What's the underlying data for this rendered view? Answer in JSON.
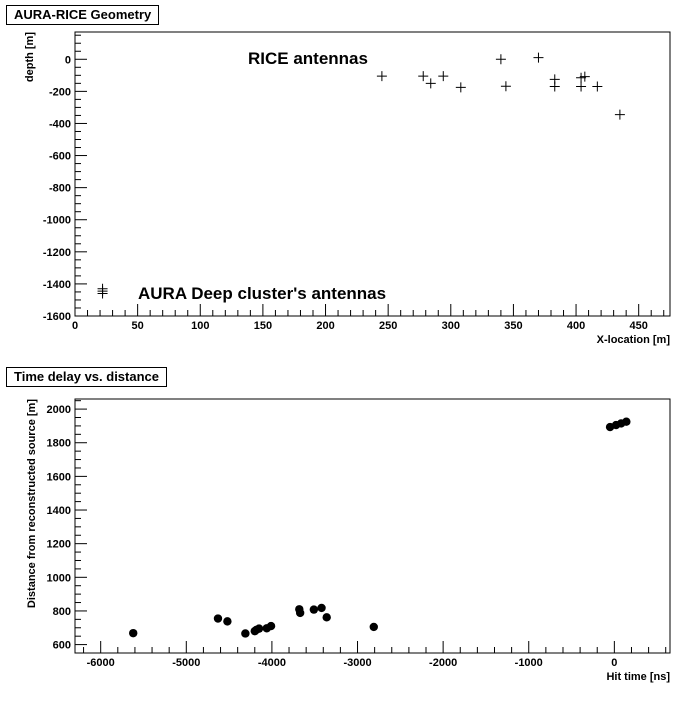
{
  "chart_data": [
    {
      "type": "scatter",
      "title": "AURA-RICE Geometry",
      "xlabel": "X-location [m]",
      "ylabel": "depth [m]",
      "xlim": [
        0,
        475
      ],
      "ylim": [
        -1600,
        170
      ],
      "xticks": [
        0,
        50,
        100,
        150,
        200,
        250,
        300,
        350,
        400,
        450
      ],
      "yticks": [
        -1600,
        -1400,
        -1200,
        -1000,
        -800,
        -600,
        -400,
        -200,
        0
      ],
      "marker": "plus",
      "annotations": [
        "RICE antennas",
        "AURA Deep cluster's antennas"
      ],
      "series": [
        {
          "points": [
            {
              "x": 245,
              "y": -105
            },
            {
              "x": 278,
              "y": -105
            },
            {
              "x": 284,
              "y": -150
            },
            {
              "x": 294,
              "y": -105
            },
            {
              "x": 308,
              "y": -175
            },
            {
              "x": 340,
              "y": 0
            },
            {
              "x": 344,
              "y": -168
            },
            {
              "x": 370,
              "y": 10
            },
            {
              "x": 383,
              "y": -125
            },
            {
              "x": 383,
              "y": -170
            },
            {
              "x": 404,
              "y": -115
            },
            {
              "x": 407,
              "y": -108
            },
            {
              "x": 404,
              "y": -170
            },
            {
              "x": 417,
              "y": -170
            },
            {
              "x": 435,
              "y": -345
            },
            {
              "x": 22,
              "y": -1430
            },
            {
              "x": 22,
              "y": -1445
            },
            {
              "x": 22,
              "y": -1460
            }
          ]
        }
      ]
    },
    {
      "type": "scatter",
      "title": "Time delay vs. distance",
      "xlabel": "Hit time [ns]",
      "ylabel": "Distance from reconstructed source [m]",
      "xlim": [
        -6300,
        650
      ],
      "ylim": [
        550,
        2060
      ],
      "xticks": [
        -6000,
        -5000,
        -4000,
        -3000,
        -2000,
        -1000,
        0
      ],
      "yticks": [
        600,
        800,
        1000,
        1200,
        1400,
        1600,
        1800,
        2000
      ],
      "marker": "dot",
      "series": [
        {
          "points": [
            {
              "x": -5620,
              "y": 668
            },
            {
              "x": -4630,
              "y": 755
            },
            {
              "x": -4520,
              "y": 738
            },
            {
              "x": -4310,
              "y": 666
            },
            {
              "x": -4200,
              "y": 680
            },
            {
              "x": -4180,
              "y": 688
            },
            {
              "x": -4150,
              "y": 695
            },
            {
              "x": -4060,
              "y": 697
            },
            {
              "x": -4010,
              "y": 710
            },
            {
              "x": -3680,
              "y": 810
            },
            {
              "x": -3670,
              "y": 788
            },
            {
              "x": -3510,
              "y": 808
            },
            {
              "x": -3420,
              "y": 818
            },
            {
              "x": -3360,
              "y": 762
            },
            {
              "x": -2810,
              "y": 705
            },
            {
              "x": -50,
              "y": 1893
            },
            {
              "x": 20,
              "y": 1905
            },
            {
              "x": 80,
              "y": 1915
            },
            {
              "x": 140,
              "y": 1925
            }
          ]
        }
      ]
    }
  ]
}
